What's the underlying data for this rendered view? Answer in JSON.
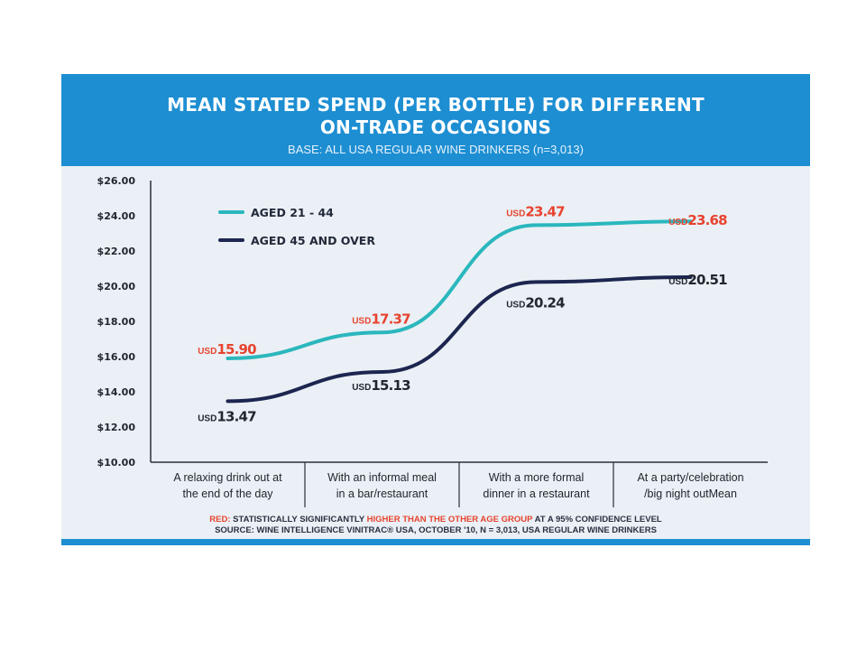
{
  "header": {
    "title_line1": "MEAN STATED SPEND (PER BOTTLE) FOR DIFFERENT",
    "title_line2": "ON-TRADE OCCASIONS",
    "subtitle": "BASE: ALL USA REGULAR WINE DRINKERS (n=3,013)"
  },
  "footnote": {
    "red_word": "RED:",
    "text_a": " STATISTICALLY SIGNIFICANTLY ",
    "highlight": "HIGHER THAN THE OTHER AGE GROUP",
    "text_b": " AT A 95% CONFIDENCE LEVEL",
    "source": "SOURCE: WINE INTELLIGENCE VINITRAC® USA, OCTOBER '10, N = 3,013, USA REGULAR WINE DRINKERS"
  },
  "colors": {
    "header_blue": "#1d8ed2",
    "series_1": "#2ab7bd",
    "series_2": "#1c2650",
    "significant": "#e8432f",
    "normal_label": "#22262e"
  },
  "chart_data": {
    "type": "line",
    "categories": [
      [
        "A relaxing drink out at",
        "the end of the day"
      ],
      [
        "With an informal meal",
        "in a bar/restaurant"
      ],
      [
        "With a more formal",
        "dinner in a restaurant"
      ],
      [
        "At a party/celebration",
        "/big night outMean"
      ]
    ],
    "series": [
      {
        "name": "AGED 21 - 44",
        "values": [
          15.9,
          17.37,
          23.47,
          23.68
        ],
        "value_labels": [
          "15.90",
          "17.37",
          "23.47",
          "23.68"
        ],
        "significant": [
          true,
          true,
          true,
          true
        ]
      },
      {
        "name": "AGED 45 AND OVER",
        "values": [
          13.47,
          15.13,
          20.24,
          20.51
        ],
        "value_labels": [
          "13.47",
          "15.13",
          "20.24",
          "20.51"
        ],
        "significant": [
          false,
          false,
          false,
          false
        ]
      }
    ],
    "value_prefix": "USD",
    "ylim": [
      10,
      26
    ],
    "yticks": [
      "$10.00",
      "$12.00",
      "$14.00",
      "$16.00",
      "$18.00",
      "$20.00",
      "$22.00",
      "$24.00",
      "$26.00"
    ],
    "legend_position": "top-left",
    "grid": false
  }
}
